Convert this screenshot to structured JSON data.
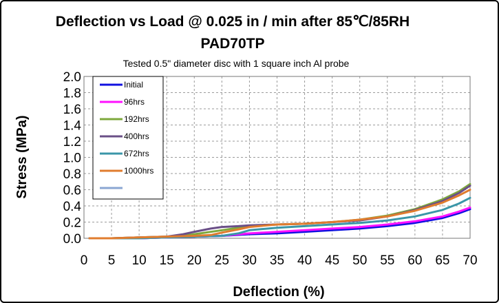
{
  "chart_data": {
    "type": "line",
    "title": "Deflection vs Load @  0.025 in / min after 85℃/85RH",
    "subtitle": "PAD70TP",
    "annotation": "Tested 0.5\" diameter disc with 1 square inch Al probe",
    "xlabel": "Deflection  (%)",
    "ylabel": "Stress (MPa)",
    "xlim": [
      0,
      70
    ],
    "ylim": [
      0,
      2.0
    ],
    "xticks": [
      0,
      5,
      10,
      15,
      20,
      25,
      30,
      35,
      40,
      45,
      50,
      55,
      60,
      65,
      70
    ],
    "yticks": [
      "0.0",
      "0.2",
      "0.4",
      "0.6",
      "0.8",
      "1.0",
      "1.2",
      "1.4",
      "1.6",
      "1.8",
      "2.0"
    ],
    "grid": true,
    "legend_position": "top-left",
    "series": [
      {
        "name": "Initial",
        "color": "#1010e0",
        "x": [
          1,
          5,
          10,
          15,
          20,
          25,
          30,
          35,
          40,
          45,
          50,
          55,
          60,
          65,
          68,
          70
        ],
        "y": [
          0.0,
          0.0,
          0.0,
          0.01,
          0.02,
          0.03,
          0.05,
          0.06,
          0.08,
          0.1,
          0.12,
          0.15,
          0.19,
          0.25,
          0.31,
          0.36
        ]
      },
      {
        "name": "96hrs",
        "color": "#ff10ff",
        "x": [
          1,
          5,
          10,
          15,
          20,
          25,
          30,
          35,
          40,
          45,
          50,
          55,
          60,
          65,
          68,
          70
        ],
        "y": [
          0.0,
          0.0,
          0.0,
          0.01,
          0.02,
          0.03,
          0.06,
          0.08,
          0.1,
          0.12,
          0.14,
          0.17,
          0.21,
          0.27,
          0.33,
          0.38
        ]
      },
      {
        "name": "192hrs",
        "color": "#7ea83c",
        "x": [
          1,
          5,
          10,
          15,
          18,
          20,
          25,
          28,
          30,
          35,
          40,
          45,
          50,
          55,
          60,
          65,
          68,
          70
        ],
        "y": [
          0.0,
          0.0,
          0.01,
          0.02,
          0.03,
          0.05,
          0.1,
          0.13,
          0.15,
          0.17,
          0.18,
          0.2,
          0.23,
          0.28,
          0.36,
          0.48,
          0.58,
          0.67
        ]
      },
      {
        "name": "400hrs",
        "color": "#6a4f87",
        "x": [
          1,
          5,
          10,
          15,
          18,
          20,
          23,
          25,
          28,
          30,
          35,
          40,
          45,
          50,
          55,
          60,
          65,
          68,
          70
        ],
        "y": [
          0.0,
          0.0,
          0.01,
          0.02,
          0.05,
          0.08,
          0.12,
          0.14,
          0.15,
          0.16,
          0.17,
          0.18,
          0.2,
          0.22,
          0.27,
          0.35,
          0.46,
          0.56,
          0.65
        ]
      },
      {
        "name": "672hrs",
        "color": "#3a96a8",
        "x": [
          1,
          5,
          10,
          15,
          20,
          25,
          28,
          30,
          35,
          40,
          45,
          50,
          55,
          60,
          65,
          68,
          70
        ],
        "y": [
          0.0,
          0.0,
          0.0,
          0.01,
          0.02,
          0.03,
          0.06,
          0.1,
          0.13,
          0.15,
          0.17,
          0.19,
          0.22,
          0.27,
          0.35,
          0.43,
          0.5
        ]
      },
      {
        "name": "1000hrs",
        "color": "#e07c2e",
        "x": [
          1,
          5,
          10,
          15,
          20,
          23,
          25,
          28,
          30,
          35,
          40,
          45,
          50,
          55,
          60,
          65,
          68,
          70
        ],
        "y": [
          0.0,
          0.0,
          0.01,
          0.02,
          0.03,
          0.04,
          0.07,
          0.11,
          0.14,
          0.17,
          0.18,
          0.2,
          0.23,
          0.27,
          0.34,
          0.44,
          0.53,
          0.6
        ]
      },
      {
        "name": "",
        "color": "#8aa6d2",
        "x": [],
        "y": []
      }
    ]
  }
}
